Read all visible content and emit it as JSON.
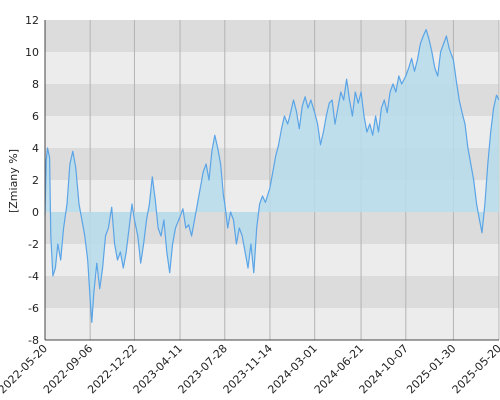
{
  "chart_data": {
    "type": "area",
    "ylabel": "[Zmiany %]",
    "ylim": [
      -8,
      12
    ],
    "yticks": [
      -8,
      -6,
      -4,
      -2,
      0,
      2,
      4,
      6,
      8,
      10,
      12
    ],
    "xrange": [
      "2022-05-20",
      "2025-05-20"
    ],
    "xticks": [
      "2022-05-20",
      "2022-09-06",
      "2022-12-22",
      "2023-04-11",
      "2023-07-28",
      "2023-11-14",
      "2024-03-01",
      "2024-06-21",
      "2024-10-07",
      "2025-01-30",
      "2025-05-20"
    ],
    "grid": true,
    "colors": {
      "line": "#5ba4e6",
      "fill": "#b7dcec",
      "band_dark": "#dcdcdc",
      "band_light": "#ececec",
      "vgrid": "#b4b4b4",
      "axis": "#444444"
    },
    "series": [
      {
        "points": [
          [
            "2022-05-20",
            -0.2
          ],
          [
            "2022-05-23",
            3.2
          ],
          [
            "2022-05-26",
            4.0
          ],
          [
            "2022-05-31",
            3.4
          ],
          [
            "2022-06-03",
            -1.5
          ],
          [
            "2022-06-08",
            -4.0
          ],
          [
            "2022-06-14",
            -3.5
          ],
          [
            "2022-06-20",
            -2.0
          ],
          [
            "2022-06-27",
            -3.0
          ],
          [
            "2022-07-04",
            -1.0
          ],
          [
            "2022-07-12",
            0.5
          ],
          [
            "2022-07-19",
            3.0
          ],
          [
            "2022-07-26",
            3.8
          ],
          [
            "2022-08-02",
            2.8
          ],
          [
            "2022-08-10",
            0.5
          ],
          [
            "2022-08-17",
            -0.5
          ],
          [
            "2022-08-24",
            -1.5
          ],
          [
            "2022-08-31",
            -3.0
          ],
          [
            "2022-09-06",
            -5.5
          ],
          [
            "2022-09-10",
            -6.9
          ],
          [
            "2022-09-15",
            -5.0
          ],
          [
            "2022-09-22",
            -3.2
          ],
          [
            "2022-09-29",
            -4.8
          ],
          [
            "2022-10-06",
            -3.5
          ],
          [
            "2022-10-13",
            -1.5
          ],
          [
            "2022-10-20",
            -1.0
          ],
          [
            "2022-10-28",
            0.3
          ],
          [
            "2022-11-04",
            -2.0
          ],
          [
            "2022-11-11",
            -3.0
          ],
          [
            "2022-11-18",
            -2.5
          ],
          [
            "2022-11-25",
            -3.5
          ],
          [
            "2022-12-02",
            -2.5
          ],
          [
            "2022-12-09",
            -1.0
          ],
          [
            "2022-12-16",
            0.5
          ],
          [
            "2022-12-22",
            -0.5
          ],
          [
            "2022-12-30",
            -1.5
          ],
          [
            "2023-01-06",
            -3.2
          ],
          [
            "2023-01-13",
            -2.0
          ],
          [
            "2023-01-20",
            -0.5
          ],
          [
            "2023-01-27",
            0.5
          ],
          [
            "2023-02-03",
            2.2
          ],
          [
            "2023-02-10",
            0.8
          ],
          [
            "2023-02-17",
            -1.0
          ],
          [
            "2023-02-24",
            -1.5
          ],
          [
            "2023-03-03",
            -0.5
          ],
          [
            "2023-03-10",
            -2.5
          ],
          [
            "2023-03-17",
            -3.8
          ],
          [
            "2023-03-24",
            -2.0
          ],
          [
            "2023-03-31",
            -1.0
          ],
          [
            "2023-04-11",
            -0.3
          ],
          [
            "2023-04-18",
            0.2
          ],
          [
            "2023-04-25",
            -1.0
          ],
          [
            "2023-05-02",
            -0.8
          ],
          [
            "2023-05-09",
            -1.5
          ],
          [
            "2023-05-16",
            -0.5
          ],
          [
            "2023-05-23",
            0.5
          ],
          [
            "2023-05-30",
            1.5
          ],
          [
            "2023-06-06",
            2.5
          ],
          [
            "2023-06-13",
            3.0
          ],
          [
            "2023-06-20",
            2.0
          ],
          [
            "2023-06-27",
            3.8
          ],
          [
            "2023-07-04",
            4.8
          ],
          [
            "2023-07-11",
            4.0
          ],
          [
            "2023-07-18",
            3.0
          ],
          [
            "2023-07-25",
            1.0
          ],
          [
            "2023-07-28",
            0.5
          ],
          [
            "2023-08-04",
            -1.0
          ],
          [
            "2023-08-11",
            0.0
          ],
          [
            "2023-08-18",
            -0.5
          ],
          [
            "2023-08-25",
            -2.0
          ],
          [
            "2023-09-01",
            -1.0
          ],
          [
            "2023-09-08",
            -1.5
          ],
          [
            "2023-09-15",
            -2.5
          ],
          [
            "2023-09-22",
            -3.5
          ],
          [
            "2023-09-29",
            -2.0
          ],
          [
            "2023-10-06",
            -3.8
          ],
          [
            "2023-10-13",
            -1.0
          ],
          [
            "2023-10-20",
            0.5
          ],
          [
            "2023-10-27",
            1.0
          ],
          [
            "2023-11-03",
            0.6
          ],
          [
            "2023-11-14",
            1.5
          ],
          [
            "2023-11-21",
            2.5
          ],
          [
            "2023-11-28",
            3.5
          ],
          [
            "2023-12-05",
            4.2
          ],
          [
            "2023-12-12",
            5.2
          ],
          [
            "2023-12-19",
            6.0
          ],
          [
            "2023-12-27",
            5.5
          ],
          [
            "2024-01-03",
            6.2
          ],
          [
            "2024-01-10",
            7.0
          ],
          [
            "2024-01-17",
            6.3
          ],
          [
            "2024-01-24",
            5.2
          ],
          [
            "2024-01-31",
            6.6
          ],
          [
            "2024-02-07",
            7.2
          ],
          [
            "2024-02-14",
            6.5
          ],
          [
            "2024-02-21",
            7.0
          ],
          [
            "2024-03-01",
            6.2
          ],
          [
            "2024-03-08",
            5.5
          ],
          [
            "2024-03-15",
            4.2
          ],
          [
            "2024-03-22",
            5.0
          ],
          [
            "2024-03-29",
            6.0
          ],
          [
            "2024-04-05",
            6.8
          ],
          [
            "2024-04-12",
            7.0
          ],
          [
            "2024-04-19",
            5.5
          ],
          [
            "2024-04-26",
            6.5
          ],
          [
            "2024-05-03",
            7.5
          ],
          [
            "2024-05-10",
            7.0
          ],
          [
            "2024-05-17",
            8.3
          ],
          [
            "2024-05-24",
            7.0
          ],
          [
            "2024-05-31",
            6.0
          ],
          [
            "2024-06-07",
            7.5
          ],
          [
            "2024-06-14",
            6.8
          ],
          [
            "2024-06-21",
            7.5
          ],
          [
            "2024-06-28",
            6.0
          ],
          [
            "2024-07-05",
            5.0
          ],
          [
            "2024-07-12",
            5.5
          ],
          [
            "2024-07-19",
            4.8
          ],
          [
            "2024-07-26",
            6.0
          ],
          [
            "2024-08-02",
            5.0
          ],
          [
            "2024-08-09",
            6.5
          ],
          [
            "2024-08-16",
            7.0
          ],
          [
            "2024-08-23",
            6.2
          ],
          [
            "2024-08-30",
            7.5
          ],
          [
            "2024-09-06",
            8.0
          ],
          [
            "2024-09-13",
            7.5
          ],
          [
            "2024-09-20",
            8.5
          ],
          [
            "2024-09-27",
            8.0
          ],
          [
            "2024-10-07",
            8.5
          ],
          [
            "2024-10-14",
            9.0
          ],
          [
            "2024-10-21",
            9.6
          ],
          [
            "2024-10-28",
            8.8
          ],
          [
            "2024-11-04",
            9.5
          ],
          [
            "2024-11-11",
            10.5
          ],
          [
            "2024-11-18",
            11.0
          ],
          [
            "2024-11-25",
            11.4
          ],
          [
            "2024-12-02",
            10.8
          ],
          [
            "2024-12-09",
            10.0
          ],
          [
            "2024-12-16",
            9.0
          ],
          [
            "2024-12-23",
            8.5
          ],
          [
            "2024-12-30",
            10.0
          ],
          [
            "2025-01-06",
            10.5
          ],
          [
            "2025-01-13",
            11.0
          ],
          [
            "2025-01-20",
            10.2
          ],
          [
            "2025-01-30",
            9.5
          ],
          [
            "2025-02-06",
            8.2
          ],
          [
            "2025-02-13",
            7.0
          ],
          [
            "2025-02-20",
            6.2
          ],
          [
            "2025-02-27",
            5.5
          ],
          [
            "2025-03-06",
            4.0
          ],
          [
            "2025-03-13",
            3.0
          ],
          [
            "2025-03-20",
            2.0
          ],
          [
            "2025-03-27",
            0.5
          ],
          [
            "2025-04-03",
            -0.5
          ],
          [
            "2025-04-09",
            -1.3
          ],
          [
            "2025-04-16",
            0.5
          ],
          [
            "2025-04-23",
            3.0
          ],
          [
            "2025-04-30",
            5.0
          ],
          [
            "2025-05-07",
            6.5
          ],
          [
            "2025-05-14",
            7.3
          ],
          [
            "2025-05-20",
            7.0
          ]
        ]
      }
    ]
  }
}
